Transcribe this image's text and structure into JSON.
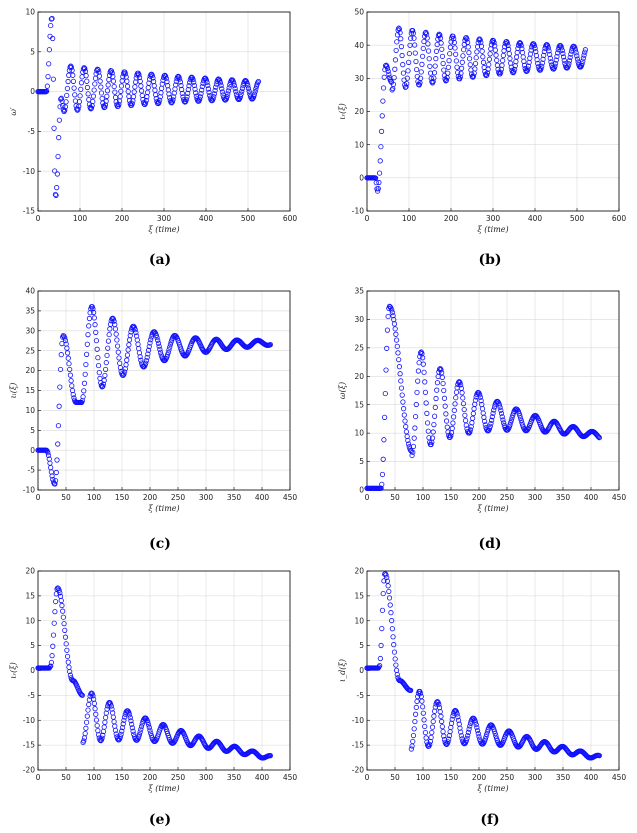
{
  "chart_data": [
    {
      "id": "a",
      "caption": "(a)",
      "type": "scatter",
      "xlabel": "ξ (time)",
      "ylabel": "ω′",
      "xlim": [
        0,
        600
      ],
      "ylim": [
        -15,
        10
      ],
      "xticks": [
        0,
        100,
        200,
        300,
        400,
        500,
        600
      ],
      "yticks": [
        -15,
        -10,
        -5,
        0,
        5,
        10
      ],
      "grid": true,
      "series": [
        {
          "marker": "circle",
          "color": "#1010ff",
          "params": {
            "t_end": 525,
            "n": 330,
            "flat_end": 20,
            "flat_val": 0,
            "initial": [
              {
                "x": 33,
                "y": 9.3
              },
              {
                "x": 42,
                "y": -13.2
              },
              {
                "x": 55,
                "y": -0.8
              }
            ],
            "center_start": 0.4,
            "center_end": 0.2,
            "amp_start": 2.9,
            "amp_end": 1.1,
            "period": 32,
            "osc_start": 62
          }
        }
      ]
    },
    {
      "id": "b",
      "caption": "(b)",
      "type": "scatter",
      "xlabel": "ξ (time)",
      "ylabel": "ιᵣ(ξ)",
      "xlim": [
        0,
        600
      ],
      "ylim": [
        -10,
        50
      ],
      "xticks": [
        0,
        100,
        200,
        300,
        400,
        500,
        600
      ],
      "yticks": [
        -10,
        0,
        10,
        20,
        30,
        40,
        50
      ],
      "grid": true,
      "series": [
        {
          "marker": "circle",
          "color": "#1010ff",
          "params": {
            "t_end": 520,
            "n": 330,
            "flat_end": 20,
            "flat_val": 0,
            "initial": [
              {
                "x": 25,
                "y": -4
              },
              {
                "x": 45,
                "y": 34
              },
              {
                "x": 58,
                "y": 29
              }
            ],
            "center_start": 36,
            "center_end": 36.5,
            "amp_start": 9.5,
            "amp_end": 3,
            "period": 32,
            "osc_start": 60
          }
        }
      ]
    },
    {
      "id": "c",
      "caption": "(c)",
      "type": "scatter",
      "xlabel": "ξ (time)",
      "ylabel": "ιₗ(ξ)",
      "xlim": [
        0,
        450
      ],
      "ylim": [
        -10,
        40
      ],
      "xticks": [
        0,
        50,
        100,
        150,
        200,
        250,
        300,
        350,
        400,
        450
      ],
      "yticks": [
        -10,
        -5,
        0,
        5,
        10,
        15,
        20,
        25,
        30,
        35,
        40
      ],
      "grid": true,
      "series": [
        {
          "marker": "circle",
          "color": "#1010ff",
          "params": {
            "t_end": 415,
            "n": 330,
            "flat_end": 15,
            "flat_val": 0,
            "initial": [
              {
                "x": 30,
                "y": -8.5
              },
              {
                "x": 45,
                "y": 28.8
              },
              {
                "x": 68,
                "y": 12
              }
            ],
            "center_start": 25,
            "center_end": 27,
            "amp_start": 13,
            "amp_end": 0.6,
            "period": 37,
            "osc_start": 78
          }
        }
      ]
    },
    {
      "id": "d",
      "caption": "(d)",
      "type": "scatter",
      "xlabel": "ξ (time)",
      "ylabel": "ω(ξ)",
      "xlim": [
        0,
        450
      ],
      "ylim": [
        0,
        35
      ],
      "xticks": [
        0,
        50,
        100,
        150,
        200,
        250,
        300,
        350,
        400,
        450
      ],
      "yticks": [
        0,
        5,
        10,
        15,
        20,
        25,
        30,
        35
      ],
      "grid": true,
      "series": [
        {
          "marker": "circle",
          "color": "#1010ff",
          "params": {
            "t_end": 415,
            "n": 330,
            "flat_end": 20,
            "flat_val": 0.3,
            "initial": [
              {
                "x": 25,
                "y": 0.3
              },
              {
                "x": 40,
                "y": 32.3
              },
              {
                "x": 80,
                "y": 6.8
              }
            ],
            "center_start": 16,
            "center_end": 9.5,
            "amp_start": 10,
            "amp_end": 0.5,
            "period": 34,
            "osc_start": 80
          }
        }
      ]
    },
    {
      "id": "e",
      "caption": "(e)",
      "type": "scatter",
      "xlabel": "ξ (time)",
      "ylabel": "ιᵣ(ξ)",
      "xlim": [
        0,
        450
      ],
      "ylim": [
        -20,
        20
      ],
      "xticks": [
        0,
        50,
        100,
        150,
        200,
        250,
        300,
        350,
        400,
        450
      ],
      "yticks": [
        -20,
        -15,
        -10,
        -5,
        0,
        5,
        10,
        15,
        20
      ],
      "grid": true,
      "series": [
        {
          "marker": "circle",
          "color": "#1010ff",
          "params": {
            "t_end": 415,
            "n": 330,
            "flat_end": 20,
            "flat_val": 0.5,
            "initial": [
              {
                "x": 22,
                "y": 0.8
              },
              {
                "x": 35,
                "y": 16.6
              },
              {
                "x": 62,
                "y": -2
              },
              {
                "x": 80,
                "y": -5
              }
            ],
            "center_start": -9,
            "center_end": -17.5,
            "amp_start": 5.5,
            "amp_end": 0.4,
            "period": 32,
            "osc_start": 80
          }
        }
      ]
    },
    {
      "id": "f",
      "caption": "(f)",
      "type": "scatter",
      "xlabel": "ξ (time)",
      "ylabel": "ι_d(ξ)",
      "xlim": [
        0,
        450
      ],
      "ylim": [
        -20,
        20
      ],
      "xticks": [
        0,
        50,
        100,
        150,
        200,
        250,
        300,
        350,
        400,
        450
      ],
      "yticks": [
        -20,
        -15,
        -10,
        -5,
        0,
        5,
        10,
        15,
        20
      ],
      "grid": true,
      "series": [
        {
          "marker": "circle",
          "color": "#1010ff",
          "params": {
            "t_end": 415,
            "n": 330,
            "flat_end": 20,
            "flat_val": 0.5,
            "initial": [
              {
                "x": 22,
                "y": 0.8
              },
              {
                "x": 32,
                "y": 19.5
              },
              {
                "x": 58,
                "y": -2
              },
              {
                "x": 78,
                "y": -4
              }
            ],
            "center_start": -9.5,
            "center_end": -17.5,
            "amp_start": 6.5,
            "amp_end": 0.4,
            "period": 32,
            "osc_start": 78
          }
        }
      ]
    }
  ]
}
